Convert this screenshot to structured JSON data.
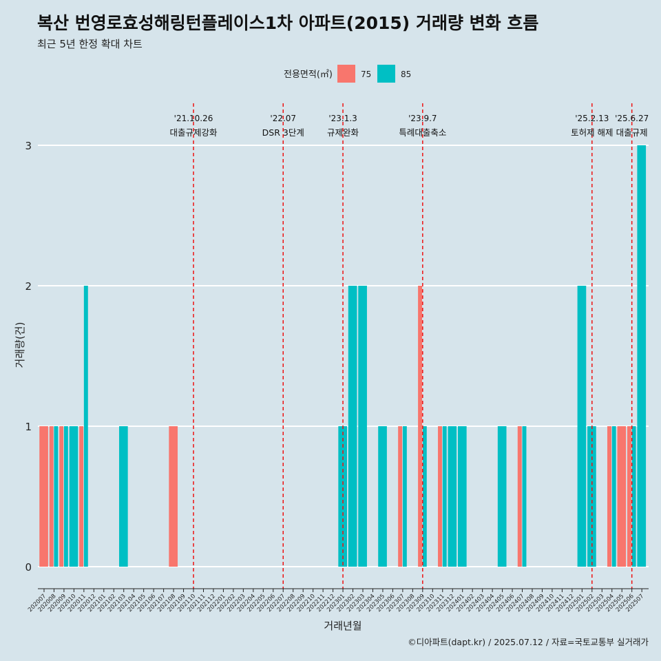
{
  "header": {
    "title": "복산 번영로효성해링턴플레이스1차 아파트(2015) 거래량 변화 흐름",
    "subtitle": "최근 5년 한정 확대 차트"
  },
  "caption": "©디아파트(dapt.kr) / 2025.07.12 / 자료=국토교통부 실거래가",
  "chart_data": {
    "type": "bar",
    "xlabel": "거래년월",
    "ylabel": "거래량(건)",
    "ylim": [
      0,
      3
    ],
    "y_ticks": [
      0,
      1,
      2,
      3
    ],
    "grid": true,
    "legend": {
      "title": "전용면적(㎡)",
      "position": "top"
    },
    "colors": {
      "75": "#f8766d",
      "85": "#00bfc4",
      "event_line": "#ee1111",
      "background": "#d6e4eb"
    },
    "categories": [
      "202007",
      "202008",
      "202009",
      "202010",
      "202011",
      "202012",
      "202101",
      "202102",
      "202103",
      "202104",
      "202105",
      "202106",
      "202107",
      "202108",
      "202109",
      "202110",
      "202111",
      "202112",
      "202201",
      "202202",
      "202203",
      "202204",
      "202205",
      "202206",
      "202207",
      "202208",
      "202209",
      "202210",
      "202211",
      "202212",
      "202301",
      "202302",
      "202303",
      "202304",
      "202305",
      "202306",
      "202307",
      "202308",
      "202309",
      "202310",
      "202311",
      "202312",
      "202401",
      "202402",
      "202403",
      "202404",
      "202405",
      "202406",
      "202407",
      "202408",
      "202409",
      "202410",
      "202411",
      "202412",
      "202501",
      "202502",
      "202503",
      "202504",
      "202505",
      "202506",
      "202507"
    ],
    "series": [
      {
        "name": "75",
        "values": [
          1,
          1,
          1,
          0,
          1,
          0,
          0,
          0,
          0,
          0,
          0,
          0,
          0,
          1,
          0,
          0,
          0,
          0,
          0,
          0,
          0,
          0,
          0,
          0,
          0,
          0,
          0,
          0,
          0,
          0,
          0,
          0,
          0,
          0,
          0,
          0,
          1,
          0,
          2,
          0,
          1,
          0,
          0,
          0,
          0,
          0,
          0,
          0,
          1,
          0,
          0,
          0,
          0,
          0,
          0,
          0,
          0,
          1,
          1,
          1,
          0
        ]
      },
      {
        "name": "85",
        "values": [
          0,
          1,
          1,
          1,
          2,
          0,
          0,
          0,
          1,
          0,
          0,
          0,
          0,
          0,
          0,
          0,
          0,
          0,
          0,
          0,
          0,
          0,
          0,
          0,
          0,
          0,
          0,
          0,
          0,
          0,
          1,
          2,
          2,
          0,
          1,
          0,
          1,
          0,
          1,
          0,
          1,
          1,
          1,
          0,
          0,
          0,
          1,
          0,
          1,
          0,
          0,
          0,
          0,
          0,
          2,
          1,
          0,
          1,
          0,
          1,
          3
        ]
      }
    ],
    "events": [
      {
        "date": "'21.10.26",
        "label": "대출규제강화",
        "x_month": "202110"
      },
      {
        "date": "'22.07",
        "label": "DSR 3단계",
        "x_month": "202207"
      },
      {
        "date": "'23.1.3",
        "label": "규제완화",
        "x_month": "202301"
      },
      {
        "date": "'23.9.7",
        "label": "특례대출축소",
        "x_month": "202309"
      },
      {
        "date": "'25.2.13",
        "label": "토허제 해제",
        "x_month": "202502"
      },
      {
        "date": "'25.6.27",
        "label": "대출규제",
        "x_month": "202506"
      }
    ]
  }
}
